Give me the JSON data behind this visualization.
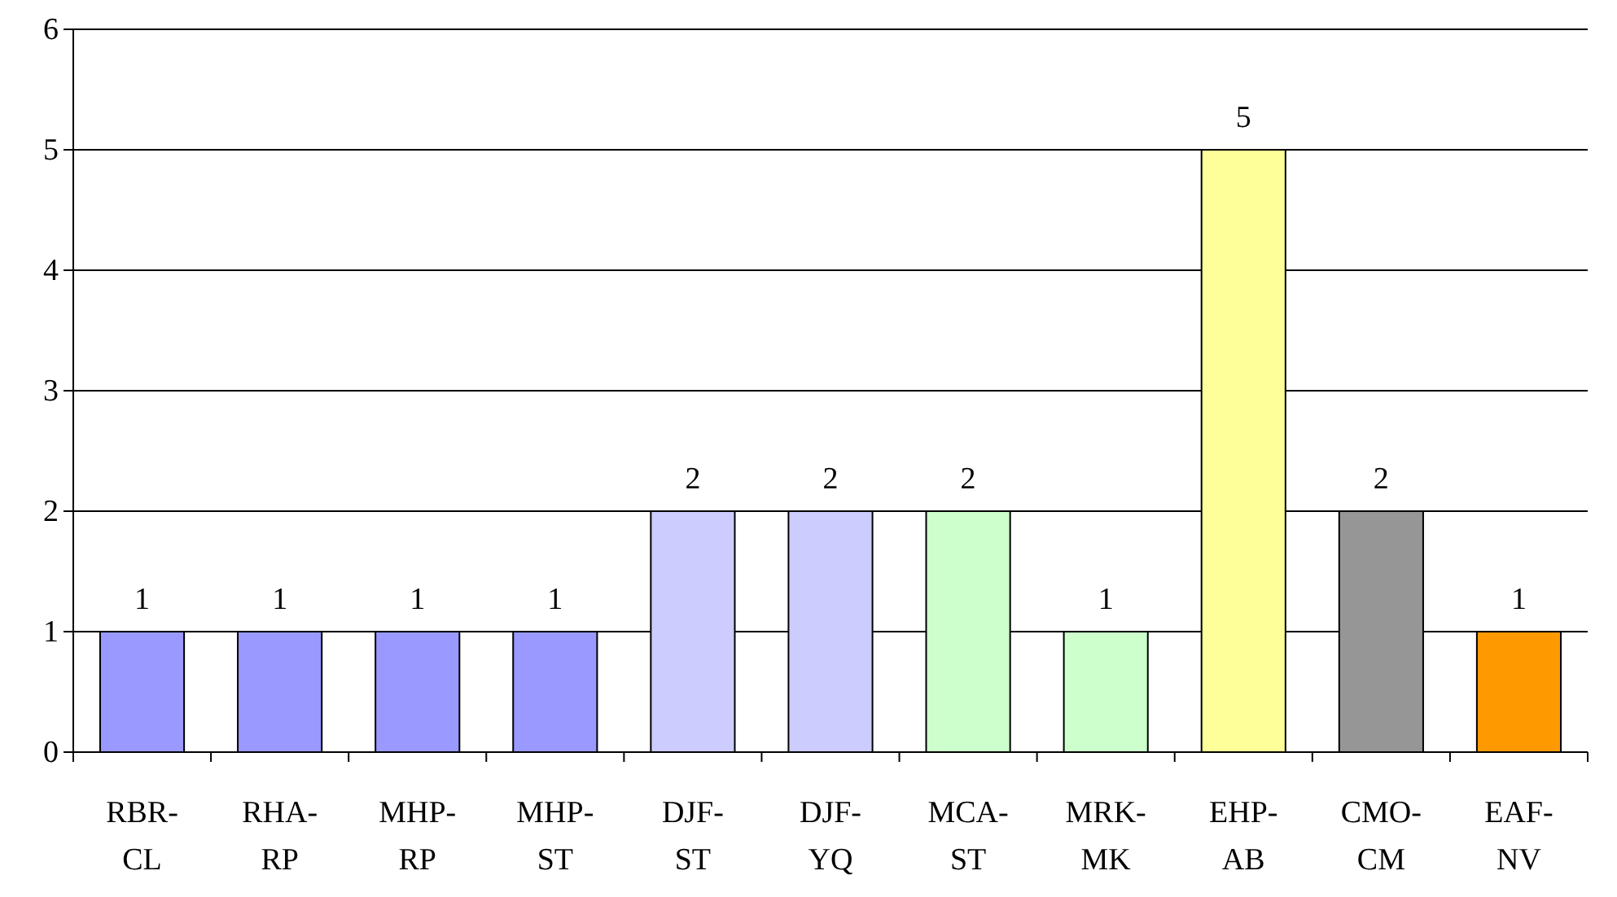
{
  "chart_data": {
    "type": "bar",
    "categories": [
      "RBR-CL",
      "RHA-RP",
      "MHP-RP",
      "MHP-ST",
      "DJF-ST",
      "DJF-YQ",
      "MCA-ST",
      "MRK-MK",
      "EHP-AB",
      "CMO-CM",
      "EAF-NV"
    ],
    "values": [
      1,
      1,
      1,
      1,
      2,
      2,
      2,
      1,
      5,
      2,
      1
    ],
    "colors": [
      "#9999ff",
      "#9999ff",
      "#9999ff",
      "#9999ff",
      "#ccccff",
      "#ccccff",
      "#ccffcc",
      "#ccffcc",
      "#ffff99",
      "#969696",
      "#ff9900"
    ],
    "ylim": [
      0,
      6
    ],
    "yticks": [
      0,
      1,
      2,
      3,
      4,
      5,
      6
    ],
    "grid": "y",
    "data_labels": true
  }
}
